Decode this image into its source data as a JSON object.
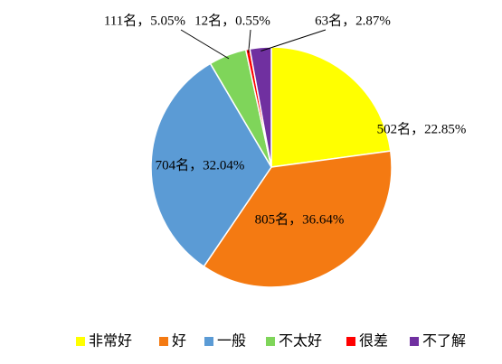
{
  "chart_data": {
    "type": "pie",
    "categories": [
      "非常好",
      "好",
      "一般",
      "不太好",
      "很差",
      "不了解"
    ],
    "values": [
      502,
      805,
      704,
      111,
      12,
      63
    ],
    "value_labels": [
      "502名，22.85%",
      "805名，36.64%",
      "704名，32.04%",
      "111名，5.05%",
      "12名，0.55%",
      "63名，2.87%"
    ],
    "colors": [
      "#ffff00",
      "#f47a12",
      "#5b9bd5",
      "#7fd55a",
      "#ff0000",
      "#7030a0"
    ],
    "legend": "bottom"
  }
}
